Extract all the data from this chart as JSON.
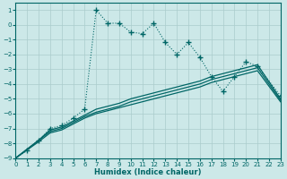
{
  "xlabel": "Humidex (Indice chaleur)",
  "background_color": "#cce8e8",
  "grid_color": "#aacccc",
  "line_color": "#006666",
  "xlim": [
    0,
    23
  ],
  "ylim": [
    -9,
    1.5
  ],
  "xticks": [
    0,
    1,
    2,
    3,
    4,
    5,
    6,
    7,
    8,
    9,
    10,
    11,
    12,
    13,
    14,
    15,
    16,
    17,
    18,
    19,
    20,
    21,
    22,
    23
  ],
  "yticks": [
    1,
    0,
    -1,
    -2,
    -3,
    -4,
    -5,
    -6,
    -7,
    -8,
    -9
  ],
  "main_x": [
    0,
    1,
    2,
    3,
    4,
    5,
    6,
    7,
    8,
    9,
    10,
    11,
    12,
    13,
    14,
    15,
    16,
    17,
    18,
    19,
    20,
    21,
    23
  ],
  "main_y": [
    -9,
    -8.5,
    -7.8,
    -7.0,
    -6.8,
    -6.3,
    -5.7,
    1.0,
    0.1,
    0.1,
    -0.5,
    -0.6,
    0.1,
    -1.2,
    -2.0,
    -1.2,
    -2.2,
    -3.5,
    -4.5,
    -3.5,
    -2.5,
    -2.8,
    -4.8
  ],
  "low1_x": [
    0,
    2,
    3,
    4,
    5,
    6,
    7,
    8,
    9,
    10,
    11,
    12,
    13,
    14,
    15,
    16,
    17,
    18,
    19,
    20,
    21,
    23
  ],
  "low1_y": [
    -9,
    -7.8,
    -7.1,
    -6.9,
    -6.5,
    -6.1,
    -5.7,
    -5.5,
    -5.3,
    -5.0,
    -4.8,
    -4.6,
    -4.4,
    -4.2,
    -4.0,
    -3.8,
    -3.5,
    -3.3,
    -3.1,
    -2.9,
    -2.7,
    -5.0
  ],
  "low2_x": [
    0,
    2,
    3,
    4,
    5,
    6,
    7,
    8,
    9,
    10,
    11,
    12,
    13,
    14,
    15,
    16,
    17,
    18,
    19,
    20,
    21,
    23
  ],
  "low2_y": [
    -9,
    -7.8,
    -7.2,
    -7.0,
    -6.6,
    -6.2,
    -5.9,
    -5.7,
    -5.5,
    -5.2,
    -5.0,
    -4.8,
    -4.6,
    -4.4,
    -4.2,
    -4.0,
    -3.7,
    -3.5,
    -3.3,
    -3.1,
    -2.9,
    -5.1
  ],
  "low3_x": [
    0,
    2,
    3,
    4,
    5,
    6,
    7,
    8,
    9,
    10,
    11,
    12,
    13,
    14,
    15,
    16,
    17,
    18,
    19,
    20,
    21,
    23
  ],
  "low3_y": [
    -9,
    -7.9,
    -7.3,
    -7.1,
    -6.7,
    -6.3,
    -6.0,
    -5.8,
    -5.6,
    -5.4,
    -5.2,
    -5.0,
    -4.8,
    -4.6,
    -4.4,
    -4.2,
    -3.9,
    -3.7,
    -3.5,
    -3.3,
    -3.1,
    -5.2
  ]
}
